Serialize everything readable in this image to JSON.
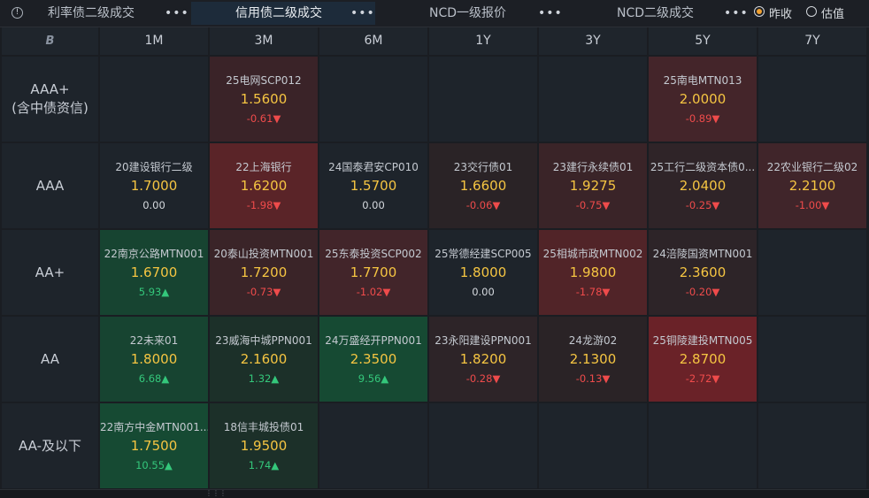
{
  "header": {
    "tabs": [
      {
        "label": "利率债二级成交",
        "active": false
      },
      {
        "label": "信用债二级成交",
        "active": true
      },
      {
        "label": "NCD一级报价",
        "active": false
      },
      {
        "label": "NCD二级成交",
        "active": false
      }
    ],
    "more_label": "•••",
    "radio_options": [
      {
        "label": "昨收",
        "selected": true
      },
      {
        "label": "估值",
        "selected": false
      }
    ]
  },
  "grid": {
    "corner_logo": "B",
    "columns": [
      "1M",
      "3M",
      "6M",
      "1Y",
      "3Y",
      "5Y",
      "7Y"
    ],
    "rows": [
      {
        "label": "AAA+\n(含中债资信)",
        "cells": [
          null,
          {
            "name": "25电网SCP012",
            "yield": "1.5600",
            "change": "-0.61▼",
            "dir": "down",
            "tint": "#3a2328"
          },
          null,
          null,
          null,
          {
            "name": "25南电MTN013",
            "yield": "2.0000",
            "change": "-0.89▼",
            "dir": "down",
            "tint": "#44252a"
          },
          null
        ]
      },
      {
        "label": "AAA",
        "cells": [
          {
            "name": "20建设银行二级",
            "yield": "1.7000",
            "change": "0.00",
            "dir": "flat",
            "tint": null
          },
          {
            "name": "22上海银行",
            "yield": "1.6200",
            "change": "-1.98▼",
            "dir": "down",
            "tint": "#5a2428"
          },
          {
            "name": "24国泰君安CP010",
            "yield": "1.5700",
            "change": "0.00",
            "dir": "flat",
            "tint": null
          },
          {
            "name": "23交行债01",
            "yield": "1.6600",
            "change": "-0.06▼",
            "dir": "down",
            "tint": "#2a2326"
          },
          {
            "name": "23建行永续债01",
            "yield": "1.9275",
            "change": "-0.75▼",
            "dir": "down",
            "tint": "#3a2428"
          },
          {
            "name": "25工行二级资本债0...",
            "yield": "2.0400",
            "change": "-0.25▼",
            "dir": "down",
            "tint": "#2f2428"
          },
          {
            "name": "22农业银行二级02",
            "yield": "2.2100",
            "change": "-1.00▼",
            "dir": "down",
            "tint": "#40252a"
          }
        ]
      },
      {
        "label": "AA+",
        "cells": [
          {
            "name": "22南京公路MTN001",
            "yield": "1.6700",
            "change": "5.93▲",
            "dir": "up",
            "tint": "#174431"
          },
          {
            "name": "20泰山投资MTN001",
            "yield": "1.7200",
            "change": "-0.73▼",
            "dir": "down",
            "tint": "#3a2428"
          },
          {
            "name": "25东泰投资SCP002",
            "yield": "1.7700",
            "change": "-1.02▼",
            "dir": "down",
            "tint": "#42252a"
          },
          {
            "name": "25常德经建SCP005",
            "yield": "1.8000",
            "change": "0.00",
            "dir": "flat",
            "tint": null
          },
          {
            "name": "25相城市政MTN002",
            "yield": "1.9800",
            "change": "-1.78▼",
            "dir": "down",
            "tint": "#512428"
          },
          {
            "name": "24涪陵国资MTN001",
            "yield": "2.3600",
            "change": "-0.20▼",
            "dir": "down",
            "tint": "#2d2428"
          },
          null
        ]
      },
      {
        "label": "AA",
        "cells": [
          {
            "name": "22未来01",
            "yield": "1.8000",
            "change": "6.68▲",
            "dir": "up",
            "tint": "#174431"
          },
          {
            "name": "23威海中城PPN001",
            "yield": "2.1600",
            "change": "1.32▲",
            "dir": "up",
            "tint": "#1c3029"
          },
          {
            "name": "24万盛经开PPN001",
            "yield": "2.3500",
            "change": "9.56▲",
            "dir": "up",
            "tint": "#164a33"
          },
          {
            "name": "23永阳建设PPN001",
            "yield": "1.8200",
            "change": "-0.28▼",
            "dir": "down",
            "tint": "#2d2428"
          },
          {
            "name": "24龙游02",
            "yield": "2.1300",
            "change": "-0.13▼",
            "dir": "down",
            "tint": "#2a2326"
          },
          {
            "name": "25铜陵建投MTN005",
            "yield": "2.8700",
            "change": "-2.72▼",
            "dir": "down",
            "tint": "#6a2228"
          },
          null
        ]
      },
      {
        "label": "AA-及以下",
        "cells": [
          {
            "name": "22南方中金MTN001...",
            "yield": "1.7500",
            "change": "10.55▲",
            "dir": "up",
            "tint": "#164a33"
          },
          {
            "name": "18信丰城投债01",
            "yield": "1.9500",
            "change": "1.74▲",
            "dir": "up",
            "tint": "#1c3029"
          },
          null,
          null,
          null,
          null,
          null
        ]
      }
    ]
  }
}
